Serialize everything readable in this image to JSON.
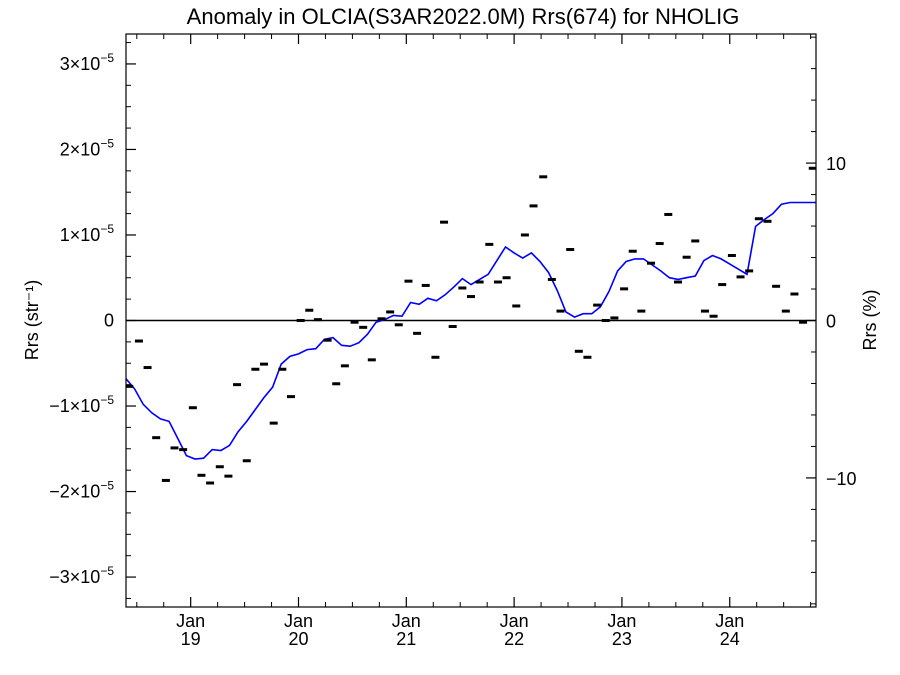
{
  "chart_data": {
    "type": "scatter",
    "title": "Anomaly in OLCIA(S3AR2022.0M) Rrs(674) for NHOLIG",
    "ylabel_left": "Rrs (str⁻¹)",
    "ylabel_right": "Rrs (%)",
    "xlim": [
      2018.4,
      2024.8
    ],
    "ylim": [
      -3.35e-05,
      3.35e-05
    ],
    "ylim_right": [
      -18.2,
      18.2
    ],
    "left_ticks": [
      {
        "value": 3e-05,
        "mantissa": "3",
        "exp": "−5"
      },
      {
        "value": 2e-05,
        "mantissa": "2",
        "exp": "−5"
      },
      {
        "value": 1e-05,
        "mantissa": "1",
        "exp": "−5"
      },
      {
        "value": 0,
        "label": "0"
      },
      {
        "value": -1e-05,
        "mantissa": "−1",
        "exp": "−5"
      },
      {
        "value": -2e-05,
        "mantissa": "−2",
        "exp": "−5"
      },
      {
        "value": -3e-05,
        "mantissa": "−3",
        "exp": "−5"
      }
    ],
    "right_ticks": [
      {
        "value": 10,
        "label": "10"
      },
      {
        "value": 0,
        "label": "0"
      },
      {
        "value": -10,
        "label": "−10"
      }
    ],
    "x_ticks": [
      {
        "value": 2019.0,
        "month": "Jan",
        "year": "19"
      },
      {
        "value": 2020.0,
        "month": "Jan",
        "year": "20"
      },
      {
        "value": 2021.0,
        "month": "Jan",
        "year": "21"
      },
      {
        "value": 2022.0,
        "month": "Jan",
        "year": "22"
      },
      {
        "value": 2023.0,
        "month": "Jan",
        "year": "23"
      },
      {
        "value": 2024.0,
        "month": "Jan",
        "year": "24"
      }
    ],
    "zero_line": true,
    "colors": {
      "points": "#000000",
      "running_mean": "#0000ff",
      "axes": "#000000"
    },
    "points": {
      "x": [
        2018.43,
        2018.52,
        2018.6,
        2018.68,
        2018.77,
        2018.85,
        2018.93,
        2019.02,
        2019.1,
        2019.18,
        2019.27,
        2019.35,
        2019.43,
        2019.52,
        2019.6,
        2019.68,
        2019.77,
        2019.85,
        2019.93,
        2020.02,
        2020.1,
        2020.18,
        2020.27,
        2020.35,
        2020.43,
        2020.52,
        2020.6,
        2020.68,
        2020.77,
        2020.85,
        2020.93,
        2021.02,
        2021.1,
        2021.18,
        2021.27,
        2021.35,
        2021.43,
        2021.52,
        2021.6,
        2021.68,
        2021.77,
        2021.85,
        2021.93,
        2022.02,
        2022.1,
        2022.18,
        2022.27,
        2022.35,
        2022.43,
        2022.52,
        2022.6,
        2022.68,
        2022.77,
        2022.85,
        2022.93,
        2023.02,
        2023.1,
        2023.18,
        2023.27,
        2023.35,
        2023.43,
        2023.52,
        2023.6,
        2023.68,
        2023.77,
        2023.85,
        2023.93,
        2024.02,
        2024.1,
        2024.18,
        2024.27,
        2024.35,
        2024.43,
        2024.52,
        2024.6,
        2024.68,
        2024.77
      ],
      "y": [
        -7.7e-06,
        -2.4e-06,
        -5.5e-06,
        -1.37e-05,
        -1.87e-05,
        -1.49e-05,
        -1.51e-05,
        -1.02e-05,
        -1.81e-05,
        -1.9e-05,
        -1.71e-05,
        -1.82e-05,
        -7.5e-06,
        -1.64e-05,
        -5.7e-06,
        -5.1e-06,
        -1.2e-05,
        -5.7e-06,
        -8.9e-06,
        0,
        1.2e-06,
        1e-07,
        -2.3e-06,
        -7.4e-06,
        -5.3e-06,
        -2e-07,
        -8e-07,
        -4.6e-06,
        2e-07,
        1e-06,
        -5e-07,
        4.6e-06,
        -1.5e-06,
        4.1e-06,
        -4.3e-06,
        1.15e-05,
        -7e-07,
        3.8e-06,
        2.8e-06,
        4.5e-06,
        8.9e-06,
        4.5e-06,
        5e-06,
        1.7e-06,
        1e-05,
        1.34e-05,
        1.68e-05,
        4.8e-06,
        1.1e-06,
        8.3e-06,
        -3.6e-06,
        -4.3e-06,
        1.8e-06,
        0,
        3e-07,
        3.7e-06,
        8.1e-06,
        1.1e-06,
        6.7e-06,
        9e-06,
        1.24e-05,
        4.5e-06,
        7.4e-06,
        9.3e-06,
        1.1e-06,
        5e-07,
        4.2e-06,
        7.6e-06,
        5.1e-06,
        5.8e-06,
        1.19e-05,
        1.16e-05,
        4e-06,
        1.1e-06,
        3.1e-06,
        -2e-07,
        1.78e-05
      ]
    },
    "running_mean": {
      "x": [
        2018.4,
        2018.48,
        2018.56,
        2018.64,
        2018.72,
        2018.8,
        2018.88,
        2018.96,
        2019.04,
        2019.12,
        2019.2,
        2019.28,
        2019.36,
        2019.44,
        2019.52,
        2019.6,
        2019.68,
        2019.76,
        2019.84,
        2019.92,
        2020.0,
        2020.08,
        2020.16,
        2020.24,
        2020.32,
        2020.4,
        2020.48,
        2020.56,
        2020.64,
        2020.72,
        2020.8,
        2020.88,
        2020.96,
        2021.04,
        2021.12,
        2021.2,
        2021.28,
        2021.36,
        2021.44,
        2021.52,
        2021.6,
        2021.68,
        2021.76,
        2021.84,
        2021.92,
        2022.0,
        2022.08,
        2022.16,
        2022.24,
        2022.32,
        2022.4,
        2022.48,
        2022.56,
        2022.64,
        2022.72,
        2022.8,
        2022.88,
        2022.96,
        2023.04,
        2023.12,
        2023.2,
        2023.28,
        2023.36,
        2023.44,
        2023.52,
        2023.6,
        2023.68,
        2023.76,
        2023.84,
        2023.92,
        2024.0,
        2024.08,
        2024.16,
        2024.24,
        2024.32,
        2024.4,
        2024.48,
        2024.56,
        2024.64,
        2024.72,
        2024.8
      ],
      "y": [
        -6.8e-06,
        -8e-06,
        -9.8e-06,
        -1.08e-05,
        -1.15e-05,
        -1.18e-05,
        -1.38e-05,
        -1.58e-05,
        -1.62e-05,
        -1.61e-05,
        -1.51e-05,
        -1.52e-05,
        -1.46e-05,
        -1.3e-05,
        -1.18e-05,
        -1.04e-05,
        -9e-06,
        -7.8e-06,
        -5.1e-06,
        -4.2e-06,
        -3.9e-06,
        -3.4e-06,
        -3.3e-06,
        -2.2e-06,
        -2e-06,
        -2.9e-06,
        -3e-06,
        -2.6e-06,
        -1.6e-06,
        -2e-07,
        1e-07,
        6e-07,
        5e-07,
        2.1e-06,
        1.9e-06,
        2.6e-06,
        2.3e-06,
        3e-06,
        3.9e-06,
        4.9e-06,
        4.2e-06,
        4.8e-06,
        5.4e-06,
        7e-06,
        8.6e-06,
        7.9e-06,
        7.3e-06,
        7.9e-06,
        6.9e-06,
        5.6e-06,
        3.5e-06,
        1e-06,
        4e-07,
        8e-07,
        8e-07,
        1.6e-06,
        3.4e-06,
        5.8e-06,
        6.9e-06,
        7.2e-06,
        7.2e-06,
        6.5e-06,
        5.8e-06,
        5e-06,
        4.8e-06,
        5e-06,
        5.2e-06,
        7e-06,
        7.6e-06,
        7.2e-06,
        6.6e-06,
        6e-06,
        5.4e-06,
        1.1e-05,
        1.18e-05,
        1.25e-05,
        1.36e-05,
        1.38e-05,
        1.38e-05,
        1.38e-05,
        1.38e-05
      ]
    }
  }
}
